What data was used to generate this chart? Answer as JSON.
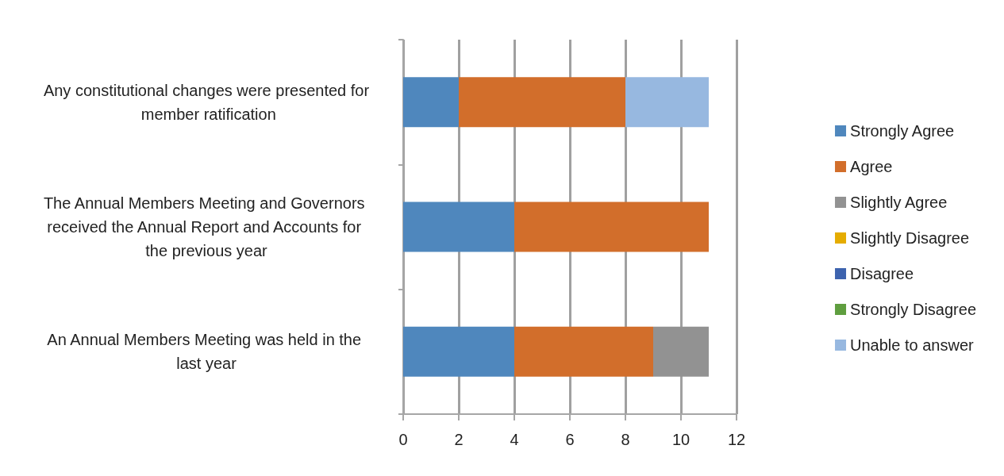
{
  "chart_data": {
    "type": "bar",
    "orientation": "horizontal",
    "stacked": true,
    "categories": [
      "Any constitutional changes were presented for member ratification",
      "The Annual Members Meeting and Governors received the Annual Report and Accounts for the previous year",
      "An Annual Members Meeting was held in the last year"
    ],
    "series": [
      {
        "name": "Strongly Agree",
        "color": "#4f87bd",
        "values": [
          2,
          4,
          4
        ]
      },
      {
        "name": "Agree",
        "color": "#d26e2b",
        "values": [
          6,
          7,
          5
        ]
      },
      {
        "name": "Slightly Agree",
        "color": "#929292",
        "values": [
          0,
          0,
          2
        ]
      },
      {
        "name": "Slightly Disagree",
        "color": "#e5ac00",
        "values": [
          0,
          0,
          0
        ]
      },
      {
        "name": "Disagree",
        "color": "#3d63ae",
        "values": [
          0,
          0,
          0
        ]
      },
      {
        "name": "Strongly Disagree",
        "color": "#5f9e3f",
        "values": [
          0,
          0,
          0
        ]
      },
      {
        "name": "Unable to answer",
        "color": "#97b8e0",
        "values": [
          3,
          0,
          0
        ]
      }
    ],
    "xlim": [
      0,
      12
    ],
    "xticks": [
      0,
      2,
      4,
      6,
      8,
      10,
      12
    ],
    "grid": "x",
    "legend": "right"
  }
}
